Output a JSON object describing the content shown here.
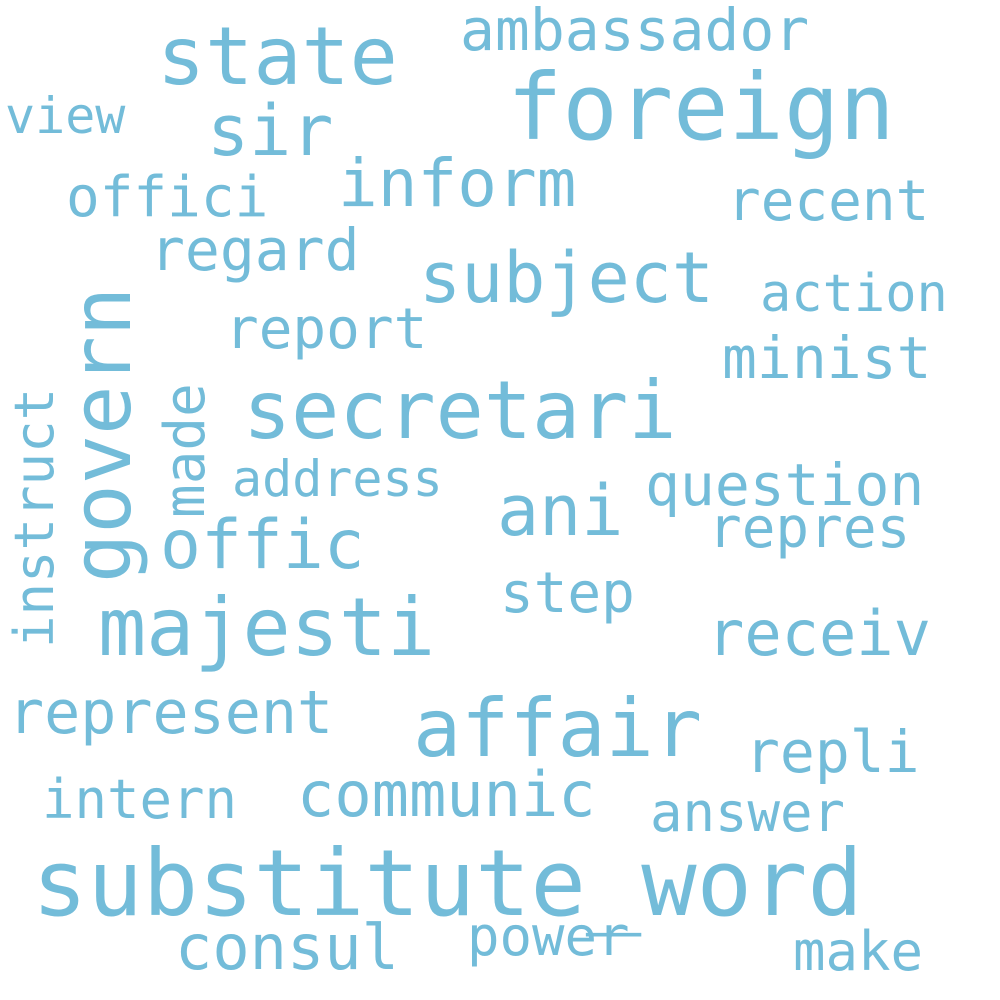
{
  "word_cloud": {
    "color": "#73bcd9",
    "background": "#ffffff",
    "words": {
      "substitute_word": "substitute_word",
      "foreign": "foreign",
      "secretari": "secretari",
      "majesti": "majesti",
      "affair": "affair",
      "state": "state",
      "govern": "govern",
      "subject": "subject",
      "offic": "offic",
      "ani": "ani",
      "sir": "sir",
      "inform": "inform",
      "communic": "communic",
      "receiv": "receiv",
      "represent": "represent",
      "consul": "consul",
      "regard": "regard",
      "question": "question",
      "repli": "repli",
      "minist": "minist",
      "recent": "recent",
      "repres": "repres",
      "ambassador": "ambassador",
      "offici": "offici",
      "report": "report",
      "step": "step",
      "power": "power",
      "answer": "answer",
      "action": "action",
      "intern": "intern",
      "make": "make",
      "address": "address",
      "view": "view",
      "made": "made",
      "instruct": "instruct"
    }
  }
}
